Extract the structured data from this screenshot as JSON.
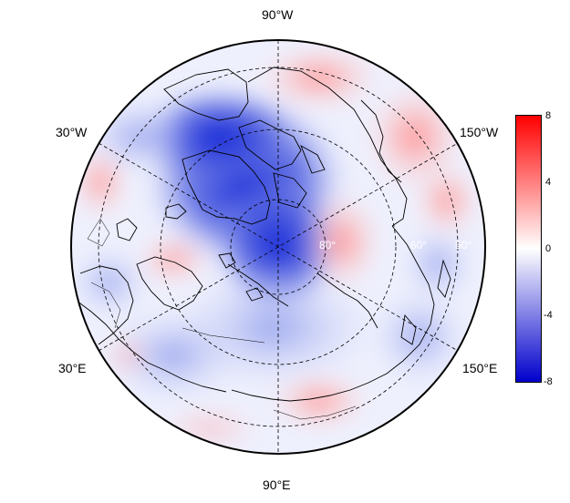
{
  "map": {
    "projection": "north-polar-stereographic",
    "longitude_labels": {
      "top": "90°W",
      "bottom": "90°E",
      "upper_left": "30°W",
      "upper_right": "150°W",
      "lower_left": "30°E",
      "lower_right": "150°E"
    },
    "latitude_labels": [
      "80°",
      "60°",
      "50°"
    ],
    "colors": {
      "negative": "#0000cc",
      "neutral": "#ffffff",
      "positive": "#ff0000",
      "coastline": "#000000",
      "gridline": "#000000"
    }
  },
  "colorbar": {
    "min": -8,
    "max": 8,
    "ticks": [
      "8",
      "4",
      "0",
      "-4",
      "-8"
    ]
  }
}
